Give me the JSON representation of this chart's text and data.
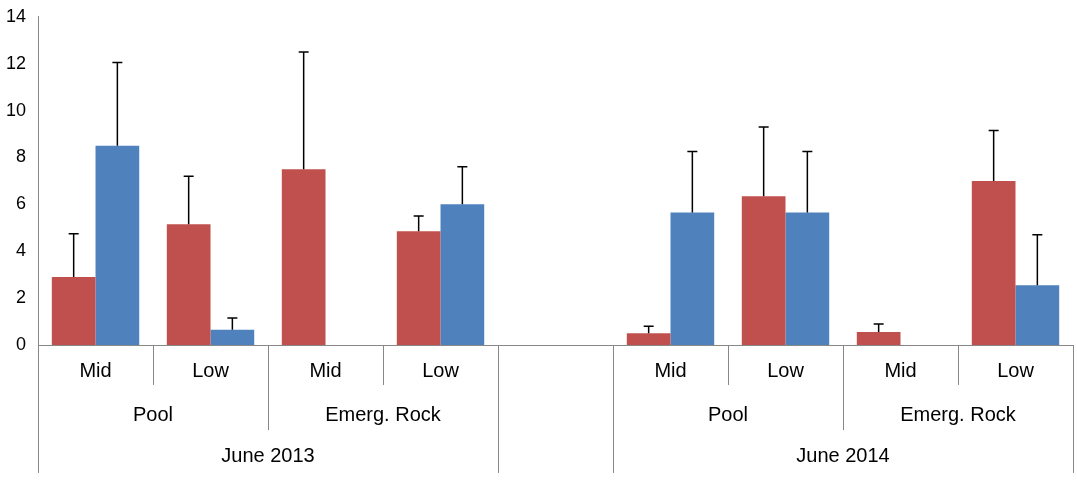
{
  "chart_data": {
    "type": "bar",
    "categories": [
      "Mid",
      "Low",
      "Mid",
      "Low",
      null,
      "Mid",
      "Low",
      "Mid",
      "Low"
    ],
    "series": [
      {
        "color": "#c0504d",
        "values": [
          2.9,
          5.15,
          7.5,
          4.85,
          null,
          0.5,
          6.35,
          0.55,
          7.0
        ],
        "errors": [
          [
            2.9,
            4.75
          ],
          [
            5.15,
            7.2
          ],
          [
            7.5,
            12.5
          ],
          [
            4.85,
            5.5
          ],
          null,
          [
            0.5,
            0.8
          ],
          [
            6.35,
            9.3
          ],
          [
            0.55,
            0.9
          ],
          [
            7.0,
            9.15
          ]
        ]
      },
      {
        "color": "#4f81bd",
        "values": [
          8.5,
          0.65,
          null,
          6.0,
          null,
          5.65,
          5.65,
          null,
          2.55
        ],
        "errors": [
          [
            8.5,
            12.05
          ],
          [
            0.65,
            1.15
          ],
          null,
          [
            6.0,
            7.6
          ],
          null,
          [
            5.65,
            8.25
          ],
          [
            5.65,
            8.25
          ],
          null,
          [
            2.55,
            4.7
          ]
        ]
      }
    ],
    "ylim": [
      0,
      14
    ],
    "yticks": [
      0,
      2,
      4,
      6,
      8,
      10,
      12,
      14
    ],
    "grid": false,
    "legend": false,
    "annotations": [
      "Pool",
      "Emerg. Rock",
      "Pool",
      "Emerg. Rock",
      "June 2013",
      "June 2014"
    ]
  }
}
